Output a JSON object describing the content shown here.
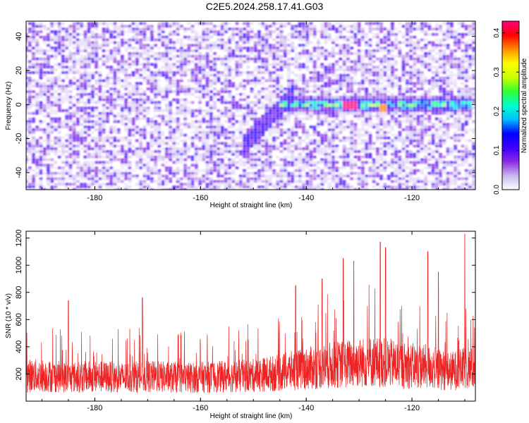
{
  "title": "C2E5.2024.258.17.41.G03",
  "chart_data": [
    {
      "type": "heatmap",
      "xlabel": "Height of straight line (km)",
      "ylabel": "Frequency (Hz)",
      "xlim": [
        -193,
        -108
      ],
      "ylim": [
        -50,
        49
      ],
      "xticks": [
        -180,
        -160,
        -140,
        -120
      ],
      "yticks": [
        -40,
        -20,
        0,
        20,
        40
      ],
      "colorbar": {
        "label": "Normalized spectral amplitude",
        "range": [
          0.0,
          0.43
        ],
        "ticks": [
          0.0,
          0.1,
          0.2,
          0.3,
          0.4
        ],
        "colors": [
          "#ffffff",
          "#c9b6ef",
          "#8a2be2",
          "#3b00ff",
          "#0000ff",
          "#00bfff",
          "#00ffcc",
          "#33ff33",
          "#ccff00",
          "#ffff00",
          "#ff8c00",
          "#ff0000",
          "#ff0080"
        ]
      },
      "grid": false,
      "features": [
        {
          "x_start": -145,
          "x_end": -109,
          "frequency": 0,
          "peak_amplitude": 0.43,
          "peak_x": -132
        },
        {
          "x_start": -152,
          "x_end": -142,
          "frequency_start": -25,
          "frequency_end": 8,
          "peak_amplitude": 0.12
        }
      ]
    },
    {
      "type": "line",
      "xlabel": "Height of straight line (km)",
      "ylabel": "SNR (10 * v/v)",
      "xlim": [
        -193,
        -108
      ],
      "ylim": [
        0,
        1250
      ],
      "xticks": [
        -180,
        -160,
        -140,
        -120
      ],
      "yticks": [
        200,
        400,
        600,
        800,
        1000,
        1200
      ],
      "series": [
        {
          "color": "#ee2222",
          "x": [
            -190,
            -185,
            -180,
            -175,
            -170,
            -165,
            -160,
            -155,
            -150,
            -145,
            -140,
            -136,
            -132,
            -128,
            -125,
            -121,
            -117,
            -113,
            -110,
            -108
          ],
          "values": [
            260,
            240,
            250,
            240,
            250,
            240,
            240,
            250,
            260,
            290,
            330,
            360,
            380,
            400,
            390,
            360,
            350,
            300,
            330,
            330
          ],
          "peaks": [
            {
              "x": -185,
              "y": 740
            },
            {
              "x": -171,
              "y": 760
            },
            {
              "x": -142,
              "y": 850
            },
            {
              "x": -137,
              "y": 900
            },
            {
              "x": -133,
              "y": 1050
            },
            {
              "x": -131,
              "y": 1030
            },
            {
              "x": -126,
              "y": 1170
            },
            {
              "x": -125,
              "y": 1130
            },
            {
              "x": -117,
              "y": 1100
            },
            {
              "x": -115,
              "y": 950
            },
            {
              "x": -110,
              "y": 1230
            }
          ]
        }
      ],
      "grid": false
    }
  ]
}
